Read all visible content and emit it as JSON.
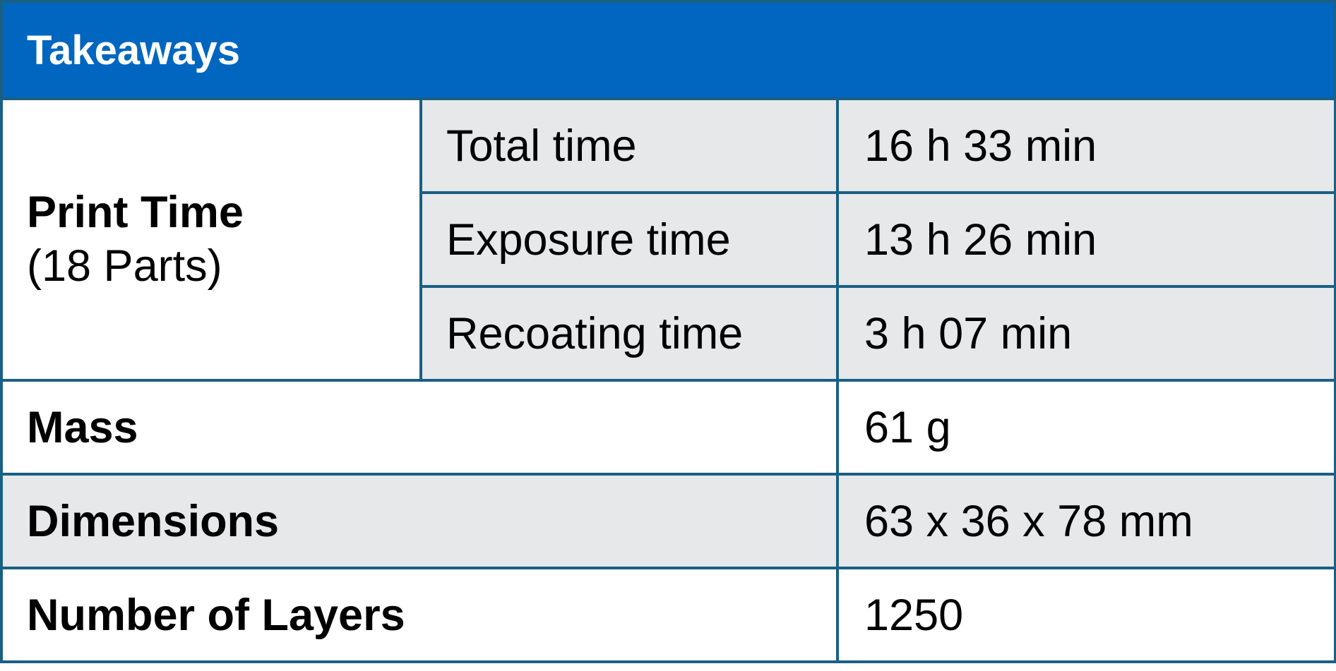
{
  "header": {
    "title": "Takeaways"
  },
  "print_time": {
    "label": "Print Time",
    "sublabel": "(18 Parts)",
    "rows": [
      {
        "label": "Total time",
        "value": "16 h 33 min"
      },
      {
        "label": "Exposure time",
        "value": "13 h 26 min"
      },
      {
        "label": "Recoating time",
        "value": "3 h 07 min"
      }
    ]
  },
  "mass": {
    "label": "Mass",
    "value": "61 g"
  },
  "dimensions": {
    "label": "Dimensions",
    "value": "63 x 36 x 78 mm"
  },
  "layers": {
    "label": "Number of Layers",
    "value": "1250"
  },
  "colors": {
    "header_bg": "#0066bf",
    "border": "#1a5f84",
    "shaded_row": "#e6e8ea"
  }
}
